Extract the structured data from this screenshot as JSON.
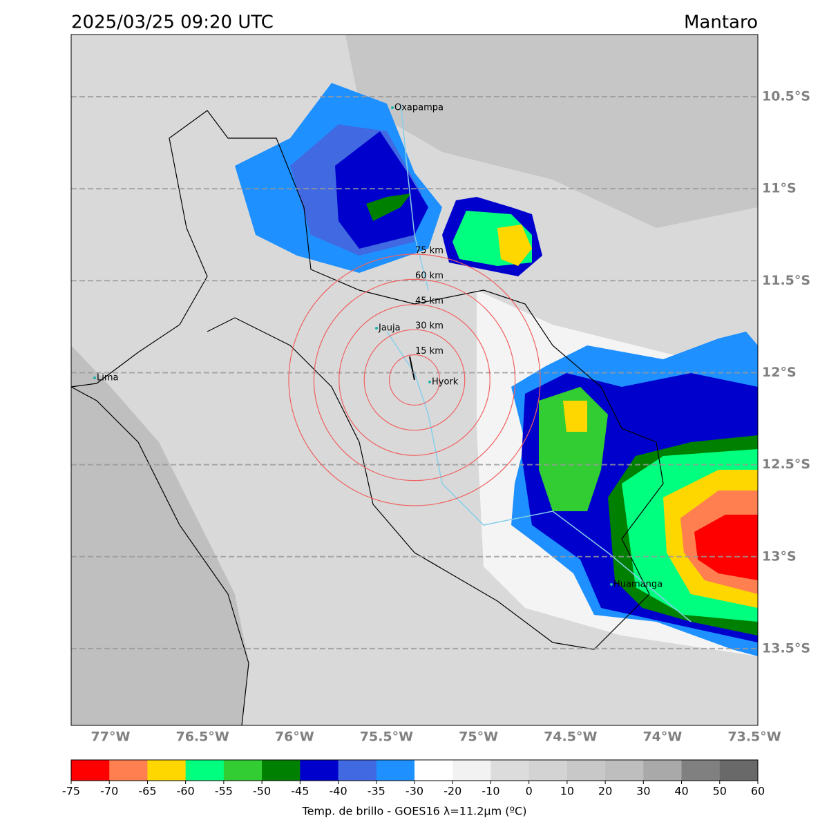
{
  "header": {
    "title": "2025/03/25 09:20 UTC",
    "region": "Mantaro"
  },
  "map": {
    "lat_ticks": [
      {
        "value": 10.5,
        "label": "10.5°S"
      },
      {
        "value": 11,
        "label": "11°S"
      },
      {
        "value": 11.5,
        "label": "11.5°S"
      },
      {
        "value": 12,
        "label": "12°S"
      },
      {
        "value": 12.5,
        "label": "12.5°S"
      },
      {
        "value": 13,
        "label": "13°S"
      },
      {
        "value": 13.5,
        "label": "13.5°S"
      }
    ],
    "lon_ticks": [
      {
        "value": 77,
        "label": "77°W"
      },
      {
        "value": 76.5,
        "label": "76.5°W"
      },
      {
        "value": 76,
        "label": "76°W"
      },
      {
        "value": 75.5,
        "label": "75.5°W"
      },
      {
        "value": 75,
        "label": "75°W"
      },
      {
        "value": 74.5,
        "label": "74.5°W"
      },
      {
        "value": 74,
        "label": "74°W"
      },
      {
        "value": 73.5,
        "label": "73.5°W"
      }
    ],
    "cities": [
      "Oxapampa",
      "Jauja",
      "Hyork",
      "Lima",
      "Huamanga"
    ],
    "rings": [
      "15 km",
      "30 km",
      "45 km",
      "60 km",
      "75 km"
    ]
  },
  "colorbar": {
    "ticks": [
      -75,
      -70,
      -65,
      -60,
      -55,
      -50,
      -45,
      -40,
      -35,
      -30,
      -20,
      -10,
      0,
      10,
      20,
      30,
      40,
      50,
      60
    ],
    "colors": [
      "#ff0000",
      "#ff7f50",
      "#ffd700",
      "#00ff7f",
      "#32cd32",
      "#008000",
      "#0000cd",
      "#4169e1",
      "#1e90ff",
      "#ffffff",
      "#f2f2f2",
      "#dcdcdc",
      "#d3d3d3",
      "#c8c8c8",
      "#bebebe",
      "#a9a9a9",
      "#808080",
      "#696969",
      "#000000"
    ],
    "label": "Temp. de brillo - GOES16 λ=11.2µm (ºC)"
  }
}
